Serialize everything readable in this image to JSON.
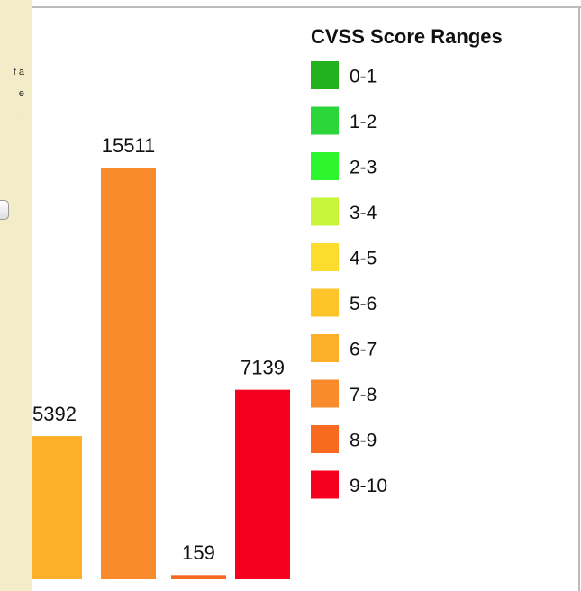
{
  "sidebar": {
    "texts": [
      "f a",
      "e",
      "."
    ]
  },
  "chart_data": {
    "type": "bar",
    "legend_title": "CVSS Score Ranges",
    "series": [
      {
        "name": "0-1",
        "color": "#22b21f",
        "values": [
          null
        ]
      },
      {
        "name": "1-2",
        "color": "#2bd63a",
        "values": [
          null
        ]
      },
      {
        "name": "2-3",
        "color": "#2ef52e",
        "values": [
          null
        ]
      },
      {
        "name": "3-4",
        "color": "#c6f53a",
        "values": [
          null
        ]
      },
      {
        "name": "4-5",
        "color": "#fcdc2c",
        "values": [
          null
        ]
      },
      {
        "name": "5-6",
        "color": "#fdc52a",
        "values": [
          null
        ]
      },
      {
        "name": "6-7",
        "color": "#fcb02a",
        "values": [
          5392
        ]
      },
      {
        "name": "7-8",
        "color": "#f98b2d",
        "values": [
          15511
        ]
      },
      {
        "name": "8-9",
        "color": "#f76a1f",
        "values": [
          159
        ]
      },
      {
        "name": "9-10",
        "color": "#f7001f",
        "values": [
          7139
        ]
      }
    ]
  }
}
